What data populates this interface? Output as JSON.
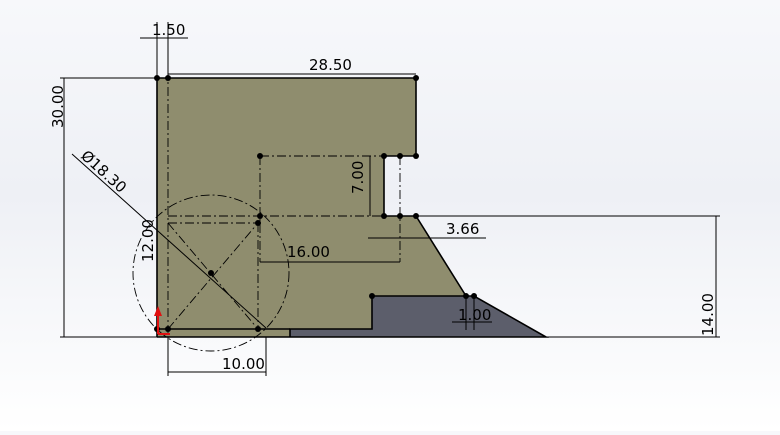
{
  "colors": {
    "face_fill": "#8f8d6e",
    "dark_fill": "#5c5e6b",
    "edge": "#000000",
    "origin": "#e01010"
  },
  "dimensions": {
    "d_1_50": "1.50",
    "d_28_50": "28.50",
    "d_30_00": "30.00",
    "d_dia_18_30": "Ø18.30",
    "d_7_00": "7.00",
    "d_12_00": "12.00",
    "d_16_00": "16.00",
    "d_3_66": "3.66",
    "d_1_00": "1.00",
    "d_14_00": "14.00",
    "d_10_00": "10.00"
  }
}
